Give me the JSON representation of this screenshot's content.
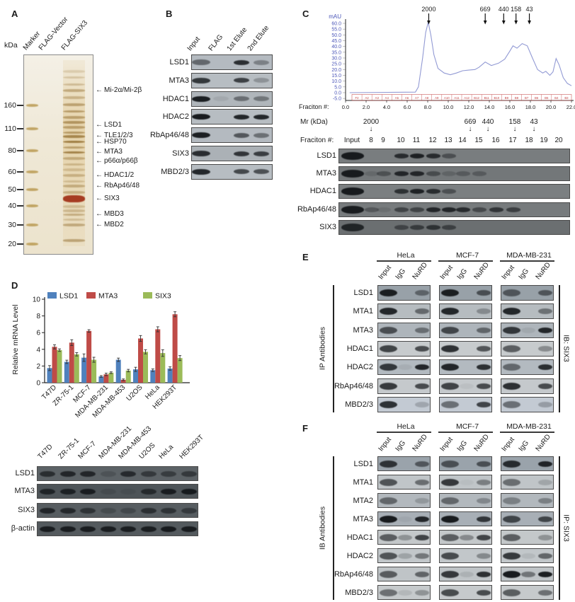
{
  "panel_a": {
    "label": "A",
    "kda_unit": "kDa",
    "lane_labels": [
      "Marker",
      "FLAG-Vector",
      "FLAG-SIX3"
    ],
    "marker_weights": [
      {
        "kda": "160",
        "f": 0.254
      },
      {
        "kda": "110",
        "f": 0.371
      },
      {
        "kda": "80",
        "f": 0.481
      },
      {
        "kda": "60",
        "f": 0.587
      },
      {
        "kda": "50",
        "f": 0.675
      },
      {
        "kda": "40",
        "f": 0.756
      },
      {
        "kda": "30",
        "f": 0.852
      },
      {
        "kda": "20",
        "f": 0.947
      }
    ],
    "annotations": [
      {
        "text": "Mi-2α/Mi-2β",
        "f": 0.18
      },
      {
        "text": "LSD1",
        "f": 0.353
      },
      {
        "text": "TLE1/2/3",
        "f": 0.406
      },
      {
        "text": "HSP70",
        "f": 0.437
      },
      {
        "text": "MTA3",
        "f": 0.488
      },
      {
        "text": "p66α/p66β",
        "f": 0.534
      },
      {
        "text": "HDAC1/2",
        "f": 0.604
      },
      {
        "text": "RbAp46/48",
        "f": 0.657
      },
      {
        "text": "SIX3",
        "f": 0.721
      },
      {
        "text": "MBD3",
        "f": 0.799
      },
      {
        "text": "MBD2",
        "f": 0.852
      }
    ],
    "six3_lane_bands": [
      {
        "f": 0.085,
        "i": 0.22
      },
      {
        "f": 0.115,
        "i": 0.28
      },
      {
        "f": 0.15,
        "i": 0.35
      },
      {
        "f": 0.18,
        "i": 0.5
      },
      {
        "f": 0.215,
        "i": 0.4
      },
      {
        "f": 0.25,
        "i": 0.55
      },
      {
        "f": 0.285,
        "i": 0.6
      },
      {
        "f": 0.315,
        "i": 0.55
      },
      {
        "f": 0.34,
        "i": 0.65
      },
      {
        "f": 0.365,
        "i": 0.55
      },
      {
        "f": 0.39,
        "i": 0.6
      },
      {
        "f": 0.41,
        "i": 0.8
      },
      {
        "f": 0.437,
        "i": 0.9
      },
      {
        "f": 0.465,
        "i": 0.55
      },
      {
        "f": 0.49,
        "i": 0.85
      },
      {
        "f": 0.52,
        "i": 0.45
      },
      {
        "f": 0.55,
        "i": 0.35
      },
      {
        "f": 0.575,
        "i": 0.3
      },
      {
        "f": 0.604,
        "i": 0.4
      },
      {
        "f": 0.635,
        "i": 0.3
      },
      {
        "f": 0.657,
        "i": 0.45
      },
      {
        "f": 0.69,
        "i": 0.4
      },
      {
        "f": 0.721,
        "i": 1,
        "red": true
      },
      {
        "f": 0.76,
        "i": 0.3
      },
      {
        "f": 0.78,
        "i": 0.35
      },
      {
        "f": 0.8,
        "i": 0.45
      },
      {
        "f": 0.825,
        "i": 0.3
      },
      {
        "f": 0.852,
        "i": 0.5
      },
      {
        "f": 0.93,
        "i": 0.55
      }
    ],
    "marker_band_color": "#b08c3a",
    "six3_band_color": "#8a6322",
    "six3_red_color": "#a63c22"
  },
  "panel_b": {
    "label": "B",
    "lane_labels": [
      "Input",
      "FLAG",
      "1st Elute",
      "2nd Elute"
    ],
    "rows": [
      {
        "label": "LSD1",
        "bg": "#b4bac0",
        "bands": [
          0.5,
          0,
          0.85,
          0.35
        ]
      },
      {
        "label": "MTA3",
        "bg": "#b7bdc2",
        "bands": [
          0.8,
          0,
          0.75,
          0.25
        ]
      },
      {
        "label": "HDAC1",
        "bg": "#b0b6bb",
        "bands": [
          0.95,
          0.08,
          0.45,
          0.4
        ]
      },
      {
        "label": "HDAC2",
        "bg": "#b7bdc2",
        "bands": [
          0.97,
          0,
          0.9,
          0.9
        ]
      },
      {
        "label": "RbAp46/48",
        "bg": "#b4bac0",
        "bands": [
          0.95,
          0,
          0.6,
          0.45
        ]
      },
      {
        "label": "SIX3",
        "bg": "#abb1b6",
        "bands": [
          0.85,
          0,
          0.8,
          0.75
        ]
      },
      {
        "label": "MBD2/3",
        "bg": "#b7bdc2",
        "bands": [
          0.9,
          0,
          0.7,
          0.65
        ]
      }
    ]
  },
  "panel_c": {
    "label": "C",
    "mr_label": "Mr (kDa)",
    "mr_markers": [
      "2000",
      "669",
      "440",
      "158",
      "43"
    ],
    "fraction_label": "Fraciton #:",
    "lane_labels": [
      "Input",
      "8",
      "9",
      "10",
      "11",
      "12",
      "13",
      "14",
      "15",
      "16",
      "17",
      "18",
      "19",
      "20"
    ],
    "rows": [
      {
        "label": "LSD1",
        "bg": "#797d7f",
        "bands": [
          0.97,
          0,
          0,
          0.8,
          0.9,
          0.8,
          0.45,
          0,
          0,
          0,
          0,
          0,
          0,
          0
        ]
      },
      {
        "label": "MTA3",
        "bg": "#737779",
        "bands": [
          0.95,
          0.15,
          0.4,
          0.85,
          0.85,
          0.45,
          0.2,
          0.3,
          0.3,
          0,
          0,
          0,
          0,
          0
        ]
      },
      {
        "label": "HDAC1",
        "bg": "#7b7f81",
        "bands": [
          0.97,
          0,
          0,
          0.75,
          0.9,
          0.8,
          0.45,
          0,
          0,
          0,
          0,
          0,
          0,
          0
        ]
      },
      {
        "label": "RbAp46/48",
        "bg": "#777b7d",
        "bands": [
          0.95,
          0.35,
          0.12,
          0.55,
          0.55,
          0.85,
          0.85,
          0.8,
          0.5,
          0.7,
          0.6,
          0,
          0,
          0
        ]
      },
      {
        "label": "SIX3",
        "bg": "#6b6f71",
        "bands": [
          0.85,
          0,
          0,
          0.5,
          0.6,
          0.7,
          0.55,
          0,
          0,
          0,
          0,
          0,
          0,
          0
        ]
      }
    ]
  },
  "panel_d": {
    "label": "D",
    "blot": {
      "lane_labels": [
        "T47D",
        "ZR-75-1",
        "MCF-7",
        "MDA-MB-231",
        "MDA-MB-453",
        "U2OS",
        "HeLa",
        "HEK293T"
      ],
      "rows": [
        {
          "label": "LSD1",
          "bg": "#5c6266",
          "bands": [
            0.7,
            0.8,
            0.8,
            0.2,
            0.75,
            0.55,
            0.5,
            0.55
          ]
        },
        {
          "label": "MTA3",
          "bg": "#4e5458",
          "bands": [
            0.8,
            0.85,
            0.9,
            0.15,
            0.1,
            0.7,
            0.9,
            0.95
          ]
        },
        {
          "label": "SIX3",
          "bg": "#575d61",
          "bands": [
            0.8,
            0.75,
            0.6,
            0.25,
            0.3,
            0.65,
            0.6,
            0.5
          ]
        },
        {
          "label": "β-actin",
          "bg": "#545a5e",
          "bands": [
            0.92,
            0.92,
            0.92,
            0.9,
            0.9,
            0.9,
            0.95,
            0.92
          ]
        }
      ]
    }
  },
  "panel_e": {
    "label": "E",
    "group_labels": [
      "HeLa",
      "MCF-7",
      "MDA-MB-231"
    ],
    "lane_labels": [
      "Input",
      "IgG",
      "NuRD"
    ],
    "left_label": "IP Antibodies",
    "right_label": "IB: SIX3",
    "rows": [
      {
        "label": "LSD1",
        "bg": "#98a1a8",
        "groups": [
          [
            0.95,
            0,
            0.45
          ],
          [
            0.95,
            0,
            0.6
          ],
          [
            0.55,
            0,
            0.55
          ]
        ]
      },
      {
        "label": "MTA1",
        "bg": "#b6bcc0",
        "groups": [
          [
            0.9,
            0,
            0.5
          ],
          [
            0.9,
            0,
            0.3
          ],
          [
            0.9,
            0,
            0.45
          ]
        ]
      },
      {
        "label": "MTA3",
        "bg": "#aeb5bb",
        "groups": [
          [
            0.65,
            0,
            0.45
          ],
          [
            0.7,
            0,
            0.5
          ],
          [
            0.8,
            0.08,
            0.9
          ]
        ]
      },
      {
        "label": "HDAC1",
        "bg": "#c7cbcd",
        "groups": [
          [
            0.75,
            0,
            0.7
          ],
          [
            0.85,
            0,
            0.65
          ],
          [
            0.6,
            0,
            0.35
          ]
        ]
      },
      {
        "label": "HDAC2",
        "bg": "#b3bac0",
        "groups": [
          [
            0.8,
            0.07,
            0.9
          ],
          [
            0.9,
            0,
            0.85
          ],
          [
            0.5,
            0,
            0.85
          ]
        ]
      },
      {
        "label": "RbAp46/48",
        "bg": "#c5c9cc",
        "groups": [
          [
            0.8,
            0,
            0.7
          ],
          [
            0.75,
            0.05,
            0.7
          ],
          [
            0.85,
            0,
            0.7
          ]
        ]
      },
      {
        "label": "MBD2/3",
        "bg": "#c3cad3",
        "groups": [
          [
            0.85,
            0,
            0.2
          ],
          [
            0.5,
            0,
            0.75
          ],
          [
            0.5,
            0,
            0.25
          ]
        ]
      }
    ]
  },
  "panel_f": {
    "label": "F",
    "group_labels": [
      "HeLa",
      "MCF-7",
      "MDA-MB-231"
    ],
    "lane_labels": [
      "Input",
      "IgG",
      "NuRD"
    ],
    "left_label": "IB Antibodies",
    "right_label": "IP: SIX3",
    "rows": [
      {
        "label": "LSD1",
        "bg": "#9aa3ab",
        "groups": [
          [
            0.8,
            0,
            0.55
          ],
          [
            0.6,
            0,
            0.6
          ],
          [
            0.85,
            0,
            0.9
          ]
        ]
      },
      {
        "label": "MTA1",
        "bg": "#c0c5c8",
        "groups": [
          [
            0.65,
            0,
            0.5
          ],
          [
            0.8,
            0.04,
            0.4
          ],
          [
            0.5,
            0,
            0.18
          ]
        ]
      },
      {
        "label": "MTA2",
        "bg": "#b2b8bd",
        "groups": [
          [
            0.5,
            0,
            0.2
          ],
          [
            0.5,
            0,
            0.3
          ],
          [
            0.35,
            0,
            0.35
          ]
        ]
      },
      {
        "label": "MTA3",
        "bg": "#a8afb6",
        "groups": [
          [
            0.97,
            0.05,
            0.9
          ],
          [
            0.97,
            0,
            0.8
          ],
          [
            0.7,
            0,
            0.7
          ]
        ]
      },
      {
        "label": "HDAC1",
        "bg": "#c4c8ca",
        "groups": [
          [
            0.6,
            0.3,
            0.75
          ],
          [
            0.6,
            0.35,
            0.75
          ],
          [
            0.6,
            0,
            0.3
          ]
        ]
      },
      {
        "label": "HDAC2",
        "bg": "#c2c7ca",
        "groups": [
          [
            0.65,
            0.2,
            0.45
          ],
          [
            0.7,
            0,
            0.35
          ],
          [
            0.8,
            0.08,
            0.55
          ]
        ]
      },
      {
        "label": "RbAp46/48",
        "bg": "#bfc4c7",
        "groups": [
          [
            0.6,
            0,
            0.55
          ],
          [
            0.8,
            0.1,
            0.85
          ],
          [
            0.97,
            0.45,
            0.95
          ]
        ]
      },
      {
        "label": "MBD2/3",
        "bg": "#c6cacc",
        "groups": [
          [
            0.5,
            0.1,
            0.3
          ],
          [
            0.7,
            0,
            0.7
          ],
          [
            0.6,
            0,
            0.5
          ]
        ]
      }
    ]
  },
  "chart_data": [
    {
      "type": "line",
      "ylabel": "mAU",
      "xlabel": "Fraciton #:",
      "ylim": [
        -5,
        62
      ],
      "xlim": [
        0,
        22
      ],
      "ytick_labels": [
        "60.0",
        "55.0",
        "50.0",
        "45.0",
        "40.0",
        "35.0",
        "30.0",
        "25.0",
        "20.0",
        "15.0",
        "10.0",
        "5.0",
        "0.0",
        "-5.0"
      ],
      "xtick_labels": [
        "0.0",
        "2.0",
        "4.0",
        "6.0",
        "8.0",
        "10.0",
        "12.0",
        "14.0",
        "16.0",
        "18.0",
        "20.0",
        "22.0"
      ],
      "fraction_cells": [
        "F2",
        "A2",
        "A3",
        "A4",
        "A5",
        "A6",
        "A7",
        "A8",
        "A9",
        "A10",
        "A11",
        "A12",
        "B12",
        "B11",
        "B10",
        "B9",
        "B8",
        "B7",
        "B6",
        "B5",
        "B4",
        "B3"
      ],
      "mw_arrows": [
        {
          "label": "2000",
          "x": 8.1
        },
        {
          "label": "669",
          "x": 13.6
        },
        {
          "label": "440",
          "x": 15.4
        },
        {
          "label": "158",
          "x": 16.6
        },
        {
          "label": "43",
          "x": 17.9
        }
      ],
      "trace_color": "#929ad4",
      "axis_label_color": "#4a55b8",
      "fraction_color": "#c03c3c",
      "points": [
        [
          0.4,
          0
        ],
        [
          6.8,
          0.5
        ],
        [
          7.1,
          5
        ],
        [
          7.5,
          30
        ],
        [
          7.8,
          52
        ],
        [
          8.05,
          61
        ],
        [
          8.3,
          50
        ],
        [
          8.6,
          33
        ],
        [
          9.0,
          21
        ],
        [
          9.6,
          17
        ],
        [
          10.2,
          15.5
        ],
        [
          10.8,
          17
        ],
        [
          11.4,
          19
        ],
        [
          12.0,
          19.5
        ],
        [
          12.6,
          20
        ],
        [
          13.0,
          22
        ],
        [
          13.6,
          26.5
        ],
        [
          14.2,
          23.5
        ],
        [
          14.9,
          25.5
        ],
        [
          15.5,
          29
        ],
        [
          16.0,
          36
        ],
        [
          16.3,
          40.5
        ],
        [
          16.7,
          38.5
        ],
        [
          17.2,
          42.5
        ],
        [
          17.7,
          40.5
        ],
        [
          18.2,
          30
        ],
        [
          18.7,
          20
        ],
        [
          19.2,
          17
        ],
        [
          19.5,
          18.5
        ],
        [
          19.9,
          15
        ],
        [
          20.2,
          18
        ],
        [
          20.5,
          29.5
        ],
        [
          20.8,
          24
        ],
        [
          21.2,
          13
        ],
        [
          21.6,
          8
        ],
        [
          22.0,
          6
        ]
      ]
    },
    {
      "type": "bar",
      "ylabel": "Relative mRNA Level",
      "ylim": [
        0,
        10
      ],
      "yticks": [
        0,
        2,
        4,
        6,
        8,
        10
      ],
      "categories": [
        "T47D",
        "ZR-75-1",
        "MCF-7",
        "MDA-MB-231",
        "MDA-MB-453",
        "U2OS",
        "HeLa",
        "HEK293T"
      ],
      "series": [
        {
          "name": "LSD1",
          "color": "#4f81bd",
          "values": [
            1.75,
            2.5,
            3.0,
            0.75,
            2.75,
            1.6,
            1.5,
            1.7
          ],
          "errors": [
            0.3,
            0.2,
            0.45,
            0.1,
            0.2,
            0.25,
            0.15,
            0.2
          ]
        },
        {
          "name": "MTA3",
          "color": "#bf4b47",
          "values": [
            4.3,
            4.8,
            6.2,
            1.0,
            0.35,
            5.3,
            6.4,
            8.2
          ],
          "errors": [
            0.25,
            0.35,
            0.15,
            0.15,
            0.1,
            0.35,
            0.3,
            0.3
          ]
        },
        {
          "name": "SIX3",
          "color": "#9bbb59",
          "values": [
            3.9,
            3.4,
            2.75,
            1.2,
            1.45,
            3.7,
            3.55,
            2.95
          ],
          "errors": [
            0.15,
            0.2,
            0.3,
            0.1,
            0.15,
            0.25,
            0.4,
            0.3
          ]
        }
      ]
    }
  ]
}
